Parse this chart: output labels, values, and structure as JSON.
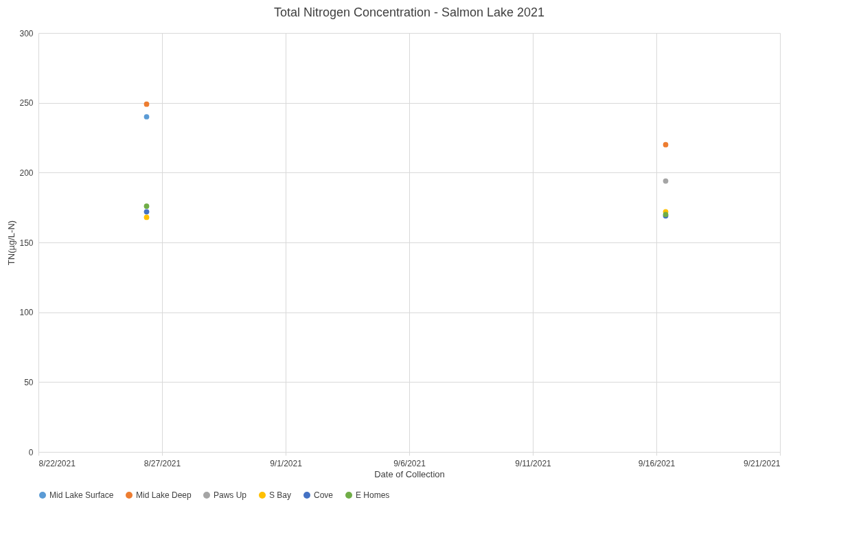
{
  "chart_data": {
    "type": "scatter",
    "title": "Total Nitrogen Concentration - Salmon Lake 2021",
    "xlabel": "Date of Collection",
    "ylabel": "TN(µg/L-N)",
    "x": [
      "2021-08-26T09:00",
      "2021-09-16T09:00"
    ],
    "series": [
      {
        "name": "Mid Lake Surface",
        "color": "#5b9bd5",
        "values": [
          240,
          null
        ]
      },
      {
        "name": "Mid Lake Deep",
        "color": "#ed7d31",
        "values": [
          249,
          220
        ]
      },
      {
        "name": "Paws Up",
        "color": "#a5a5a5",
        "values": [
          null,
          194
        ]
      },
      {
        "name": "S Bay",
        "color": "#ffc000",
        "values": [
          168,
          172
        ]
      },
      {
        "name": "Cove",
        "color": "#4472c4",
        "values": [
          172,
          169
        ]
      },
      {
        "name": "E Homes",
        "color": "#70ad47",
        "values": [
          176,
          170
        ]
      }
    ],
    "xlim": [
      "2021-08-22",
      "2021-09-21"
    ],
    "xticks": [
      {
        "value": "2021-08-22",
        "label": "8/22/2021"
      },
      {
        "value": "2021-08-27",
        "label": "8/27/2021"
      },
      {
        "value": "2021-09-01",
        "label": "9/1/2021"
      },
      {
        "value": "2021-09-06",
        "label": "9/6/2021"
      },
      {
        "value": "2021-09-11",
        "label": "9/11/2021"
      },
      {
        "value": "2021-09-16",
        "label": "9/16/2021"
      },
      {
        "value": "2021-09-21",
        "label": "9/21/2021"
      }
    ],
    "ylim": [
      0,
      300
    ],
    "yticks": [
      0,
      50,
      100,
      150,
      200,
      250,
      300
    ],
    "grid": true,
    "legend": "bottom",
    "marker": "circle"
  }
}
